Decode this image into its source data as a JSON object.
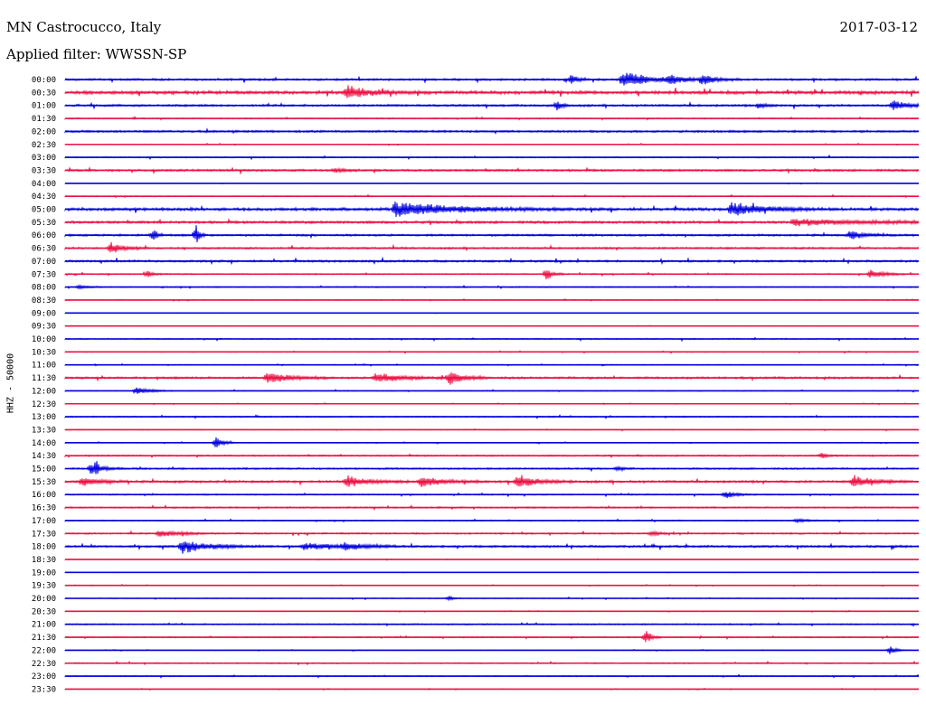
{
  "header": {
    "station": "MN Castrocucco, Italy",
    "date": "2017-03-12",
    "filter": "Applied filter: WWSSN-SP"
  },
  "channel_label": "HHZ - 50000",
  "colors": {
    "trace_a": "#0000dd",
    "trace_b": "#ee1144",
    "text": "#000000",
    "background": "#ffffff"
  },
  "chart_data": {
    "type": "line",
    "title": "MN Castrocucco, Italy",
    "subtitle": "Applied filter: WWSSN-SP",
    "ylabel": "HHZ - 50000",
    "row_labels": [
      "00:00",
      "00:30",
      "01:00",
      "01:30",
      "02:00",
      "02:30",
      "03:00",
      "03:30",
      "04:00",
      "04:30",
      "05:00",
      "05:30",
      "06:00",
      "06:30",
      "07:00",
      "07:30",
      "08:00",
      "08:30",
      "09:00",
      "09:30",
      "10:00",
      "10:30",
      "11:00",
      "11:30",
      "12:00",
      "12:30",
      "13:00",
      "13:30",
      "14:00",
      "14:30",
      "15:00",
      "15:30",
      "16:00",
      "16:30",
      "17:00",
      "17:30",
      "18:00",
      "18:30",
      "19:00",
      "19:30",
      "20:00",
      "20:30",
      "21:00",
      "21:30",
      "22:00",
      "22:30",
      "23:00",
      "23:30"
    ],
    "row_minutes": 30,
    "noise_levels": [
      1,
      1.6,
      1,
      0.6,
      1,
      0.4,
      0.6,
      1,
      0.3,
      0.5,
      1.4,
      1.2,
      1,
      0.9,
      1,
      0.6,
      0.5,
      0.4,
      0.2,
      0.2,
      0.6,
      0.4,
      0.4,
      1,
      0.4,
      0.3,
      0.6,
      0.4,
      0.4,
      0.7,
      0.8,
      1.1,
      0.6,
      0.7,
      0.5,
      0.8,
      1,
      0.3,
      0.2,
      0.3,
      0.4,
      0.3,
      0.6,
      0.6,
      0.3,
      0.6,
      0.5,
      0.3
    ],
    "events": [
      {
        "row": 0,
        "minute": 17.8,
        "amp": 6,
        "dur": 0.3
      },
      {
        "row": 0,
        "minute": 19.6,
        "amp": 10,
        "dur": 1.2
      },
      {
        "row": 0,
        "minute": 21.2,
        "amp": 5,
        "dur": 0.8
      },
      {
        "row": 0,
        "minute": 22.4,
        "amp": 6,
        "dur": 0.6
      },
      {
        "row": 1,
        "minute": 9.9,
        "amp": 7,
        "dur": 1.3
      },
      {
        "row": 2,
        "minute": 17.3,
        "amp": 7,
        "dur": 0.2
      },
      {
        "row": 2,
        "minute": 24.4,
        "amp": 4,
        "dur": 0.3
      },
      {
        "row": 2,
        "minute": 29.1,
        "amp": 6,
        "dur": 0.7
      },
      {
        "row": 7,
        "minute": 9.5,
        "amp": 3,
        "dur": 0.4
      },
      {
        "row": 10,
        "minute": 11.6,
        "amp": 9,
        "dur": 2.8
      },
      {
        "row": 10,
        "minute": 23.4,
        "amp": 8,
        "dur": 1.6
      },
      {
        "row": 11,
        "minute": 25.6,
        "amp": 4,
        "dur": 3.5
      },
      {
        "row": 12,
        "minute": 3.1,
        "amp": 8,
        "dur": 0.2
      },
      {
        "row": 12,
        "minute": 4.6,
        "amp": 14,
        "dur": 0.15
      },
      {
        "row": 12,
        "minute": 27.6,
        "amp": 5,
        "dur": 0.7
      },
      {
        "row": 13,
        "minute": 1.6,
        "amp": 8,
        "dur": 0.5
      },
      {
        "row": 15,
        "minute": 2.9,
        "amp": 4,
        "dur": 0.3
      },
      {
        "row": 15,
        "minute": 16.9,
        "amp": 8,
        "dur": 0.3
      },
      {
        "row": 15,
        "minute": 28.3,
        "amp": 6,
        "dur": 0.6
      },
      {
        "row": 16,
        "minute": 0.5,
        "amp": 3,
        "dur": 0.4
      },
      {
        "row": 23,
        "minute": 7.1,
        "amp": 7,
        "dur": 1.1
      },
      {
        "row": 23,
        "minute": 10.9,
        "amp": 6,
        "dur": 1.3
      },
      {
        "row": 23,
        "minute": 13.5,
        "amp": 8,
        "dur": 0.7
      },
      {
        "row": 24,
        "minute": 2.5,
        "amp": 5,
        "dur": 0.6
      },
      {
        "row": 28,
        "minute": 5.3,
        "amp": 9,
        "dur": 0.3
      },
      {
        "row": 29,
        "minute": 26.6,
        "amp": 3,
        "dur": 0.3
      },
      {
        "row": 30,
        "minute": 0.9,
        "amp": 6,
        "dur": 0.6
      },
      {
        "row": 30,
        "minute": 1.1,
        "amp": 8,
        "dur": 0.1
      },
      {
        "row": 30,
        "minute": 19.4,
        "amp": 3,
        "dur": 0.3
      },
      {
        "row": 31,
        "minute": 0.6,
        "amp": 6,
        "dur": 0.8
      },
      {
        "row": 31,
        "minute": 9.9,
        "amp": 7,
        "dur": 1.0
      },
      {
        "row": 31,
        "minute": 12.5,
        "amp": 7,
        "dur": 1.0
      },
      {
        "row": 31,
        "minute": 15.9,
        "amp": 8,
        "dur": 0.9
      },
      {
        "row": 31,
        "minute": 27.7,
        "amp": 7,
        "dur": 0.9
      },
      {
        "row": 32,
        "minute": 23.2,
        "amp": 5,
        "dur": 0.5
      },
      {
        "row": 34,
        "minute": 25.7,
        "amp": 3,
        "dur": 0.5
      },
      {
        "row": 35,
        "minute": 3.3,
        "amp": 4,
        "dur": 1.0
      },
      {
        "row": 35,
        "minute": 20.6,
        "amp": 3,
        "dur": 0.4
      },
      {
        "row": 36,
        "minute": 4.1,
        "amp": 8,
        "dur": 1.3
      },
      {
        "row": 36,
        "minute": 8.4,
        "amp": 4,
        "dur": 1.5
      },
      {
        "row": 36,
        "minute": 9.8,
        "amp": 4,
        "dur": 1.0
      },
      {
        "row": 40,
        "minute": 13.5,
        "amp": 3,
        "dur": 0.2
      },
      {
        "row": 43,
        "minute": 20.4,
        "amp": 10,
        "dur": 0.25
      },
      {
        "row": 44,
        "minute": 29.0,
        "amp": 5,
        "dur": 0.3
      }
    ]
  }
}
